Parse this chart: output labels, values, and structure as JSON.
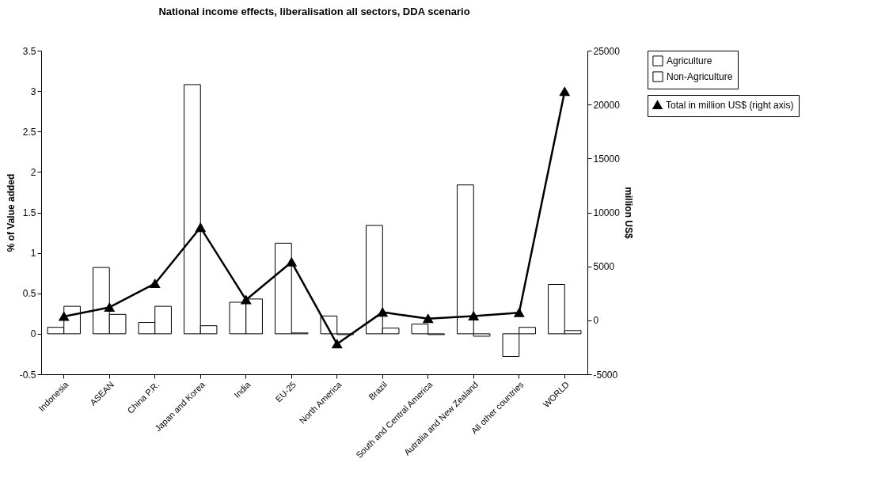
{
  "chart_data": {
    "type": "bar",
    "title": "National income effects, liberalisation all sectors, DDA scenario",
    "ylabel": "% of Value added",
    "y2label": "million US$",
    "categories": [
      "Indonesia",
      "ASEAN",
      "China P.R.",
      "Japan and Korea",
      "India",
      "EU-25",
      "North America",
      "Brazil",
      "South and Central America",
      "Autralia and New Zealand",
      "All other countries",
      "WORLD"
    ],
    "series": [
      {
        "name": "Agriculture",
        "color": "#ffffff",
        "values": [
          0.08,
          0.82,
          0.14,
          3.08,
          0.39,
          1.12,
          0.22,
          1.34,
          0.12,
          1.84,
          -0.28,
          0.61
        ]
      },
      {
        "name": "Non-Agriculture",
        "color": "#ffffff",
        "values": [
          0.34,
          0.24,
          0.34,
          0.1,
          0.43,
          0.01,
          -0.01,
          0.07,
          -0.01,
          -0.03,
          0.08,
          0.04
        ]
      },
      {
        "name": "Total in million US$ (right axis)",
        "type": "line",
        "axis": "y2",
        "color": "#000000",
        "marker": "triangle",
        "values": [
          350,
          1200,
          3400,
          8600,
          1900,
          5400,
          -2200,
          750,
          150,
          400,
          700,
          21200
        ]
      }
    ],
    "ylim": [
      -0.5,
      3.5
    ],
    "yticks": [
      -0.5,
      0,
      0.5,
      1,
      1.5,
      2,
      2.5,
      3,
      3.5
    ],
    "y2lim": [
      -5000,
      25000
    ],
    "y2ticks": [
      -5000,
      0,
      5000,
      10000,
      15000,
      20000,
      25000
    ],
    "grid": false,
    "legend": "right"
  }
}
